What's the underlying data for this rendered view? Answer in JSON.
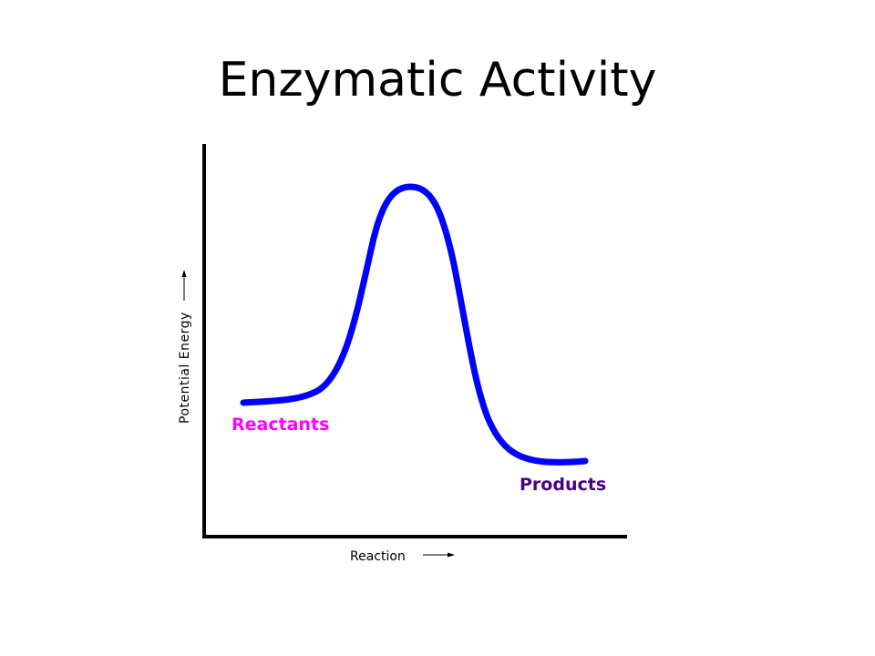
{
  "title": "Enzymatic Activity",
  "diagram": {
    "y_axis_label": "Potential Energy",
    "x_axis_label": "Reaction",
    "labels": {
      "reactants": "Reactants",
      "products": "Products"
    },
    "colors": {
      "curve": "#0000FF",
      "reactants": "#FF00FF",
      "products": "#4B0082",
      "axes": "#000000"
    }
  }
}
